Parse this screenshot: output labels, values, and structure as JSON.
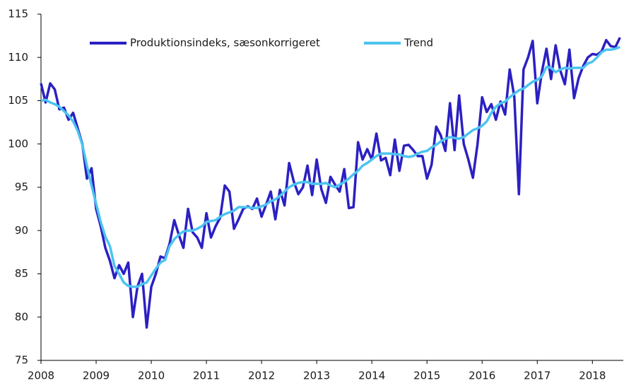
{
  "chart_data": {
    "type": "line",
    "x": [
      2008.0,
      2008.083,
      2008.167,
      2008.25,
      2008.333,
      2008.417,
      2008.5,
      2008.583,
      2008.667,
      2008.75,
      2008.833,
      2008.917,
      2009.0,
      2009.083,
      2009.167,
      2009.25,
      2009.333,
      2009.417,
      2009.5,
      2009.583,
      2009.667,
      2009.75,
      2009.833,
      2009.917,
      2010.0,
      2010.083,
      2010.167,
      2010.25,
      2010.333,
      2010.417,
      2010.5,
      2010.583,
      2010.667,
      2010.75,
      2010.833,
      2010.917,
      2011.0,
      2011.083,
      2011.167,
      2011.25,
      2011.333,
      2011.417,
      2011.5,
      2011.583,
      2011.667,
      2011.75,
      2011.833,
      2011.917,
      2012.0,
      2012.083,
      2012.167,
      2012.25,
      2012.333,
      2012.417,
      2012.5,
      2012.583,
      2012.667,
      2012.75,
      2012.833,
      2012.917,
      2013.0,
      2013.083,
      2013.167,
      2013.25,
      2013.333,
      2013.417,
      2013.5,
      2013.583,
      2013.667,
      2013.75,
      2013.833,
      2013.917,
      2014.0,
      2014.083,
      2014.167,
      2014.25,
      2014.333,
      2014.417,
      2014.5,
      2014.583,
      2014.667,
      2014.75,
      2014.833,
      2014.917,
      2015.0,
      2015.083,
      2015.167,
      2015.25,
      2015.333,
      2015.417,
      2015.5,
      2015.583,
      2015.667,
      2015.75,
      2015.833,
      2015.917,
      2016.0,
      2016.083,
      2016.167,
      2016.25,
      2016.333,
      2016.417,
      2016.5,
      2016.583,
      2016.667,
      2016.75,
      2016.833,
      2016.917,
      2017.0,
      2017.083,
      2017.167,
      2017.25,
      2017.333,
      2017.417,
      2017.5,
      2017.583,
      2017.667,
      2017.75,
      2017.833,
      2017.917,
      2018.0,
      2018.083,
      2018.167,
      2018.25,
      2018.333,
      2018.417,
      2018.5
    ],
    "series": [
      {
        "name": "Produktionsindeks, sæsonkorrigeret",
        "color": "#2b20c2",
        "values": [
          107,
          104.8,
          107,
          106.3,
          104,
          104.2,
          102.8,
          103.6,
          101.8,
          100,
          96,
          97.2,
          92.5,
          90.5,
          88,
          86.5,
          84.5,
          86,
          85,
          86.3,
          80,
          83.5,
          85,
          78.8,
          83.5,
          85,
          87,
          86.8,
          88.5,
          91.2,
          89.5,
          88,
          92.5,
          89.8,
          89.2,
          88,
          92,
          89.2,
          90.5,
          91.5,
          95.2,
          94.5,
          90.2,
          91.3,
          92.5,
          92.8,
          92.5,
          93.7,
          91.6,
          93,
          94.5,
          91.3,
          94.7,
          92.9,
          97.8,
          95.7,
          94.2,
          95,
          97.5,
          94.1,
          98.2,
          94.8,
          93.2,
          96.2,
          95.3,
          94.5,
          97.1,
          92.6,
          92.7,
          100.2,
          98.2,
          99.4,
          98.2,
          101.2,
          98.1,
          98.4,
          96.4,
          100.5,
          96.9,
          99.8,
          99.9,
          99.3,
          98.6,
          98.6,
          96,
          97.6,
          102,
          101,
          99.2,
          104.7,
          99.3,
          105.6,
          100,
          98.2,
          96.1,
          100,
          105.4,
          103.7,
          104.6,
          102.8,
          104.9,
          103.4,
          108.6,
          105.5,
          94.2,
          108.6,
          110,
          111.9,
          104.7,
          108.3,
          111,
          107.5,
          111.4,
          108.5,
          106.9,
          110.9,
          105.3,
          107.6,
          109,
          110,
          110.4,
          110.3,
          110.7,
          112,
          111.3,
          111.2,
          112.3
        ]
      },
      {
        "name": "Trend",
        "color": "#4cc4f0",
        "values": [
          105,
          105.1,
          104.8,
          104.6,
          104.3,
          103.8,
          103.3,
          102.6,
          101.5,
          99.9,
          97.5,
          95.2,
          93.1,
          91,
          89.3,
          88.2,
          85.9,
          85,
          84,
          83.6,
          83.5,
          83.5,
          83.8,
          84,
          84.8,
          85.6,
          86.3,
          86.6,
          88.2,
          89,
          89.5,
          89.9,
          90,
          90,
          90.2,
          90.5,
          91,
          91.1,
          91.2,
          91.6,
          91.9,
          92.1,
          92.3,
          92.7,
          92.7,
          92.7,
          92.6,
          92.6,
          92.8,
          93,
          93.4,
          93.6,
          94,
          94.5,
          95,
          95.3,
          95.5,
          95.6,
          95.6,
          95.4,
          95.4,
          95.4,
          95.5,
          95.2,
          95,
          95.3,
          95.6,
          96,
          96.5,
          96.9,
          97.5,
          97.8,
          98.2,
          98.6,
          98.9,
          98.9,
          98.9,
          98.8,
          98.8,
          98.6,
          98.5,
          98.6,
          98.9,
          99.1,
          99.2,
          99.6,
          99.9,
          100.3,
          100.6,
          100.8,
          100.7,
          100.6,
          100.8,
          101.2,
          101.6,
          101.8,
          102.1,
          102.6,
          103.6,
          104.3,
          104.7,
          104.9,
          105.4,
          105.8,
          106.2,
          106.4,
          106.8,
          107.2,
          107.4,
          107.8,
          108.9,
          108.8,
          108.3,
          108.6,
          108.8,
          108.7,
          108.8,
          108.8,
          108.8,
          109.3,
          109.5,
          110,
          110.6,
          110.9,
          110.9,
          111,
          111.2
        ]
      }
    ],
    "xlim": [
      2008,
      2018.56
    ],
    "xticks": [
      2008,
      2009,
      2010,
      2011,
      2012,
      2013,
      2014,
      2015,
      2016,
      2017,
      2018
    ],
    "ylim": [
      75,
      115
    ],
    "yticks": [
      75,
      80,
      85,
      90,
      95,
      100,
      105,
      110,
      115
    ]
  }
}
